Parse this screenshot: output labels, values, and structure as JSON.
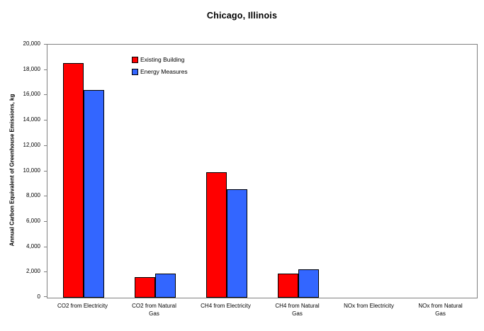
{
  "chart_data": {
    "type": "bar",
    "title": "Chicago, Illinois",
    "xlabel": "",
    "ylabel": "Annual Carbon Equivalent of Greenhouse Emissions, kg",
    "categories": [
      "CO2 from Electricity",
      "CO2 from Natural\nGas",
      "CH4 from Electricity",
      "CH4 from Natural\nGas",
      "NOx from Electricity",
      "NOx from Natural\nGas"
    ],
    "series": [
      {
        "name": "Existing Building",
        "color": "#ff0000",
        "values": [
          18550,
          1600,
          9900,
          1900,
          0,
          0
        ]
      },
      {
        "name": "Energy Measures",
        "color": "#3366ff",
        "values": [
          16400,
          1900,
          8550,
          2250,
          0,
          0
        ]
      }
    ],
    "ylim": [
      0,
      20000
    ],
    "ytick_interval": 2000,
    "ytick_labels": [
      "0",
      "2,000",
      "4,000",
      "6,000",
      "8,000",
      "10,000",
      "12,000",
      "14,000",
      "16,000",
      "18,000",
      "20,000"
    ],
    "grid": false,
    "legend_position": "inside-top-left",
    "bar_border_color": "#000000",
    "axis_frame_color": "#808080"
  }
}
